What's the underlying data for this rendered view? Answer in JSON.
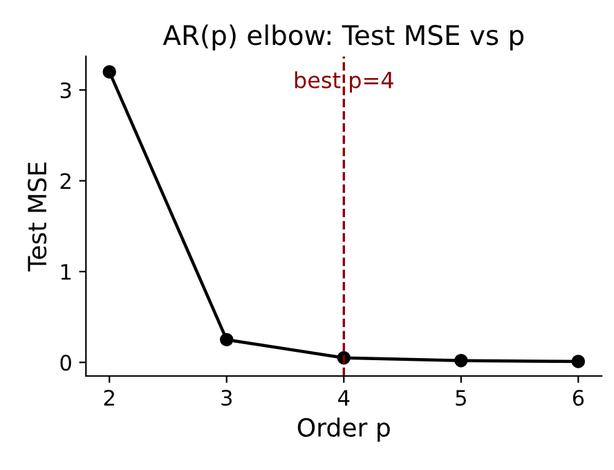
{
  "chart_data": {
    "type": "line",
    "title": "AR(p) elbow: Test MSE vs p",
    "xlabel": "Order p",
    "ylabel": "Test MSE",
    "x": [
      2,
      3,
      4,
      5,
      6
    ],
    "series": [
      {
        "color": "#000000",
        "values": [
          3.2,
          0.25,
          0.05,
          0.02,
          0.01
        ]
      }
    ],
    "marker": "circle",
    "line_style": "solid",
    "xlim": [
      1.8,
      6.2
    ],
    "xticks": [
      2,
      3,
      4,
      5,
      6
    ],
    "ylim": [
      -0.15,
      3.37
    ],
    "yticks": [
      0,
      1,
      2,
      3
    ],
    "ref_lines": [
      {
        "axis": "x",
        "value": 4,
        "label": "best p=4",
        "color": "#8b0000",
        "line_style": "dashed"
      }
    ],
    "grid": false,
    "legend": false
  }
}
